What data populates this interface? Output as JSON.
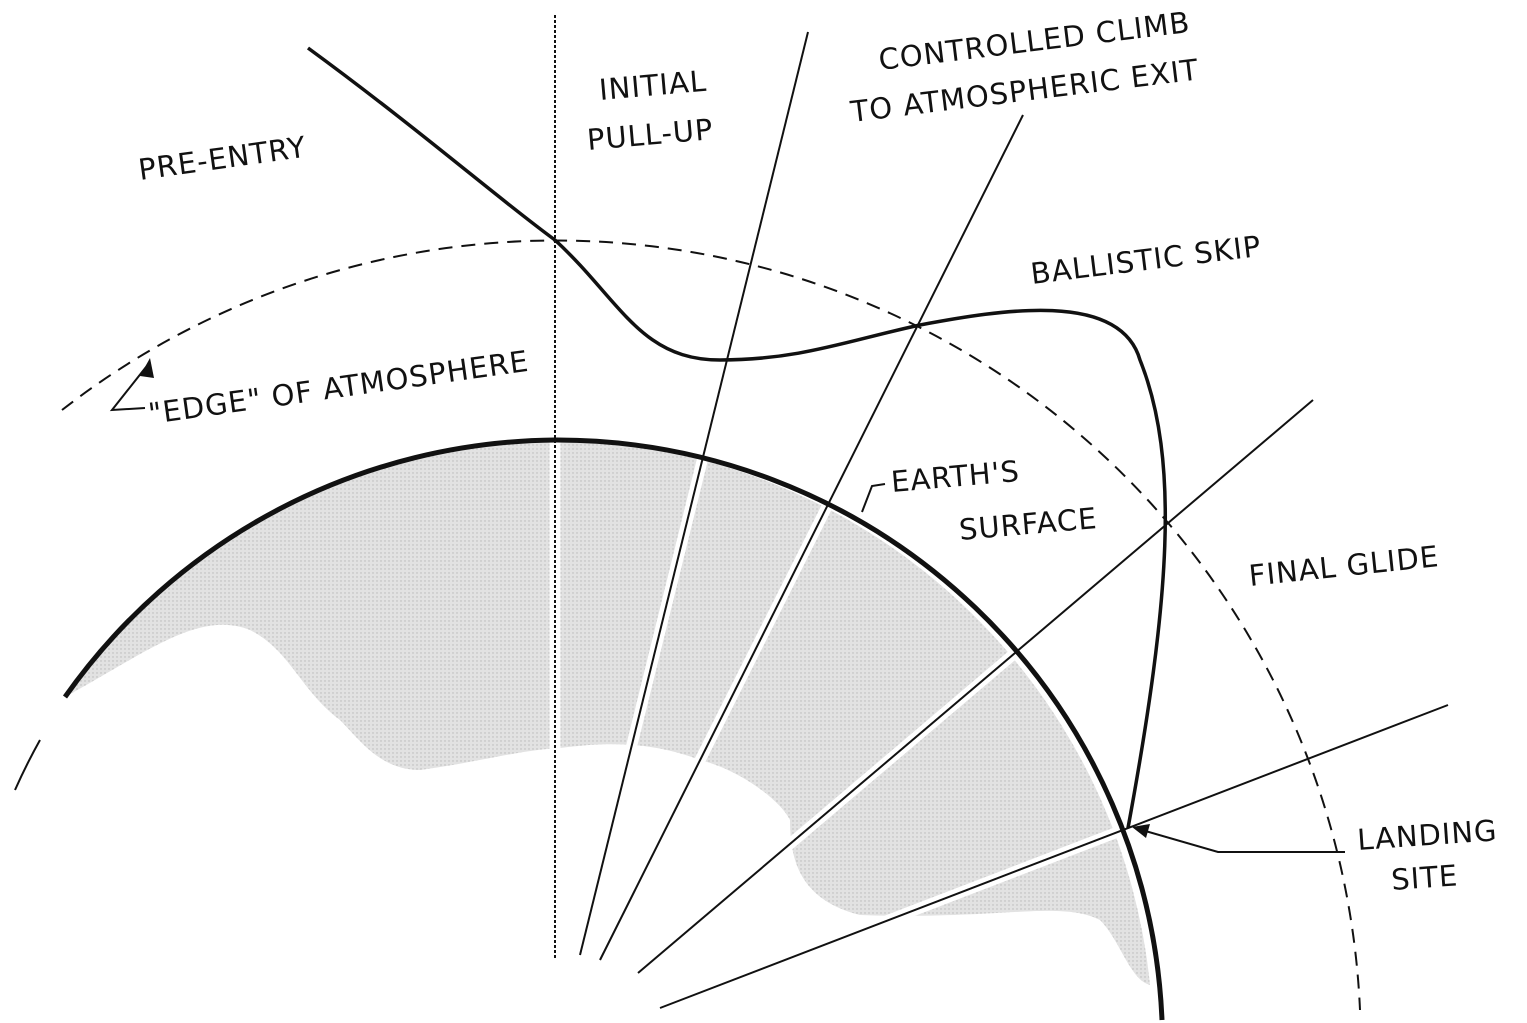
{
  "labels": {
    "pre_entry": [
      "PRE-ENTRY"
    ],
    "initial_pull_up": [
      "INITIAL",
      "PULL-UP"
    ],
    "controlled_climb": [
      "CONTROLLED CLIMB",
      "TO ATMOSPHERIC EXIT"
    ],
    "ballistic_skip": [
      "BALLISTIC SKIP"
    ],
    "edge_of_atmosphere": [
      "\"EDGE\" OF ATMOSPHERE"
    ],
    "earths_surface": [
      "EARTH'S",
      "SURFACE"
    ],
    "final_glide": [
      "FINAL GLIDE"
    ],
    "landing_site": [
      "LANDING",
      "SITE"
    ]
  }
}
